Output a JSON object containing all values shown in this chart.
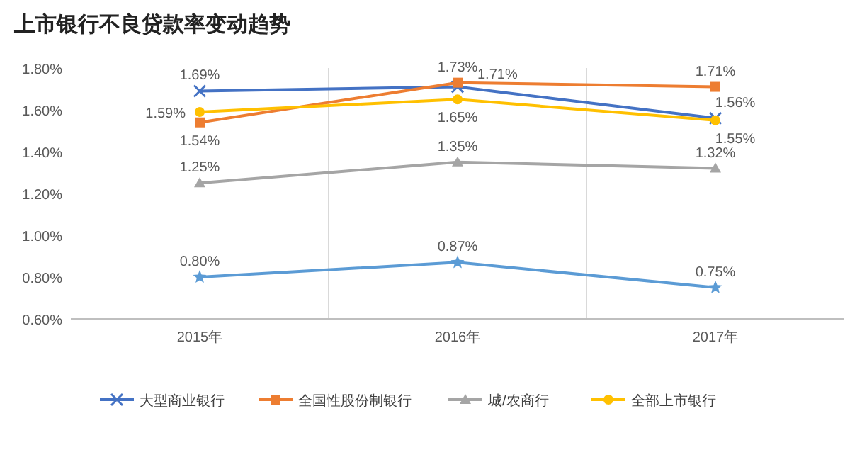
{
  "chart_data": {
    "type": "line",
    "title": "上市银行不良贷款率变动趋势",
    "categories": [
      "2015年",
      "2016年",
      "2017年"
    ],
    "series": [
      {
        "name": "大型商业银行",
        "color": "#4472c4",
        "marker": "cross",
        "values": [
          1.69,
          1.71,
          1.56
        ],
        "value_labels": [
          "1.69%",
          "1.71%",
          "1.56%"
        ]
      },
      {
        "name": "全国性股份制银行",
        "color": "#ed7d31",
        "marker": "square",
        "values": [
          1.54,
          1.73,
          1.71
        ],
        "value_labels": [
          "1.54%",
          "1.73%",
          "1.71%"
        ]
      },
      {
        "name": "城/农商行",
        "color": "#a5a5a5",
        "marker": "triangle",
        "values": [
          1.25,
          1.35,
          1.32
        ],
        "value_labels": [
          "1.25%",
          "1.35%",
          "1.32%"
        ]
      },
      {
        "name": "全部上市银行",
        "color": "#ffc000",
        "marker": "circle",
        "values": [
          1.59,
          1.65,
          1.55
        ],
        "value_labels": [
          "1.59%",
          "1.65%",
          "1.55%"
        ]
      },
      {
        "color": "#5b9bd5",
        "marker": "star",
        "values": [
          0.8,
          0.87,
          0.75
        ],
        "value_labels": [
          "0.80%",
          "0.87%",
          "0.75%"
        ]
      }
    ],
    "ylim": [
      0.6,
      1.8
    ],
    "yticks": [
      {
        "value": 0.6,
        "label": "0.60%"
      },
      {
        "value": 0.8,
        "label": "0.80%"
      },
      {
        "value": 1.0,
        "label": "1.00%"
      },
      {
        "value": 1.2,
        "label": "1.20%"
      },
      {
        "value": 1.4,
        "label": "1.40%"
      },
      {
        "value": 1.6,
        "label": "1.60%"
      },
      {
        "value": 1.8,
        "label": "1.80%"
      }
    ],
    "grid": "x",
    "legend": "bottom",
    "line_style": "solid"
  }
}
